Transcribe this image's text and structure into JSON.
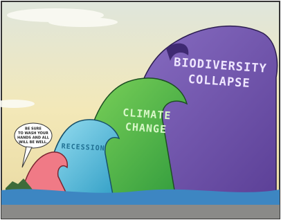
{
  "speech_bubble": [
    "BE SURE",
    "TO WASH YOUR",
    "HANDS AND ALL",
    "WILL BE WELL."
  ],
  "waves": [
    {
      "label": [
        "RECESSION"
      ]
    },
    {
      "label": [
        "CLIMATE",
        "CHANGE"
      ]
    },
    {
      "label": [
        "BIODIVERSITY",
        "COLLAPSE"
      ]
    }
  ]
}
